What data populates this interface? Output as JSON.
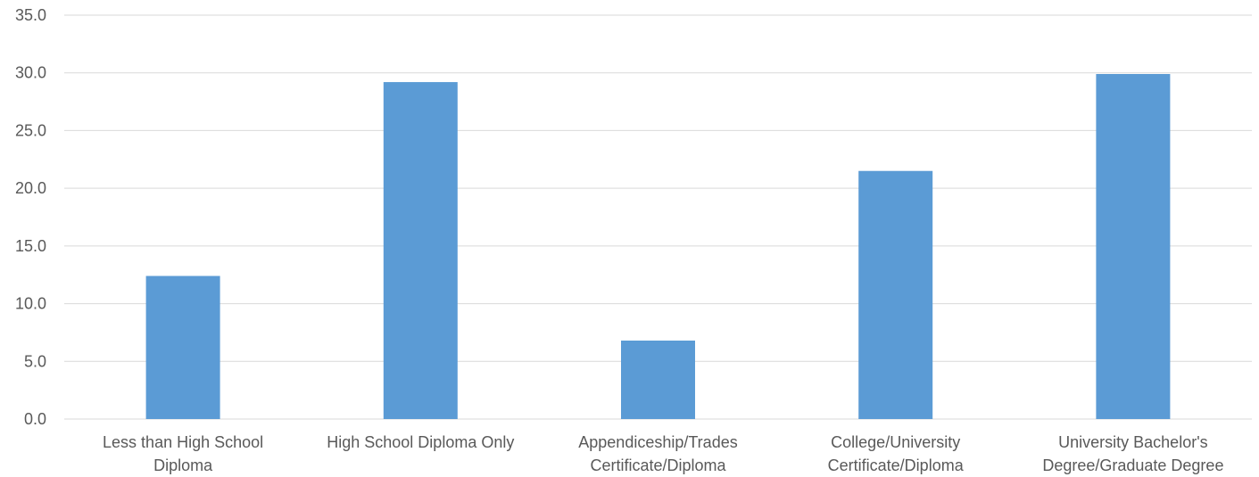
{
  "chart_data": {
    "type": "bar",
    "categories": [
      [
        "Less than High School",
        "Diploma"
      ],
      [
        "High School Diploma Only"
      ],
      [
        "Appendiceship/Trades",
        "Certificate/Diploma"
      ],
      [
        "College/University",
        "Certificate/Diploma"
      ],
      [
        "University Bachelor's",
        "Degree/Graduate Degree"
      ]
    ],
    "values": [
      12.4,
      29.2,
      6.8,
      21.5,
      29.9
    ],
    "y_ticks": [
      "0.0",
      "5.0",
      "10.0",
      "15.0",
      "20.0",
      "25.0",
      "30.0",
      "35.0"
    ],
    "ylim": [
      0,
      35
    ],
    "grid": true,
    "legend": "none",
    "bar_color": "#5b9bd5"
  }
}
